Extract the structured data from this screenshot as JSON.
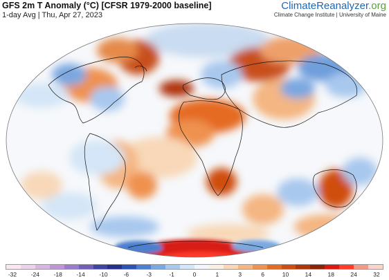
{
  "header": {
    "title": "GFS 2m T Anomaly (°C) [CFSR 1979-2000 baseline]",
    "subtitle": "1-day Avg | Thu, Apr 27, 2023"
  },
  "brand": {
    "name_part1": "ClimateReanalyzer",
    "name_part2": ".org",
    "sub": "Climate Change Institute | University of Maine",
    "color1": "#1f67b0",
    "color2": "#57a13a"
  },
  "colorbar": {
    "colors": [
      "#fbe6f2",
      "#ecd2ec",
      "#d8b6e2",
      "#bf95d6",
      "#9b7ccb",
      "#6f5fb8",
      "#3f44a0",
      "#24318c",
      "#2d52b3",
      "#4c7fcf",
      "#7aa8e0",
      "#a8c8ee",
      "#d4e6f7",
      "#f3f7fb",
      "#fbf0e4",
      "#f8d8b8",
      "#f4b682",
      "#ef9250",
      "#e56b22",
      "#cf4d10",
      "#b0350a",
      "#8c2206",
      "#d81a12",
      "#ff3b2a",
      "#f29a86",
      "#f8d4cb"
    ],
    "ticks": [
      "-32",
      "-24",
      "-18",
      "-14",
      "-10",
      "-6",
      "-3",
      "-1",
      "0",
      "1",
      "3",
      "6",
      "10",
      "14",
      "18",
      "24",
      "32"
    ]
  }
}
